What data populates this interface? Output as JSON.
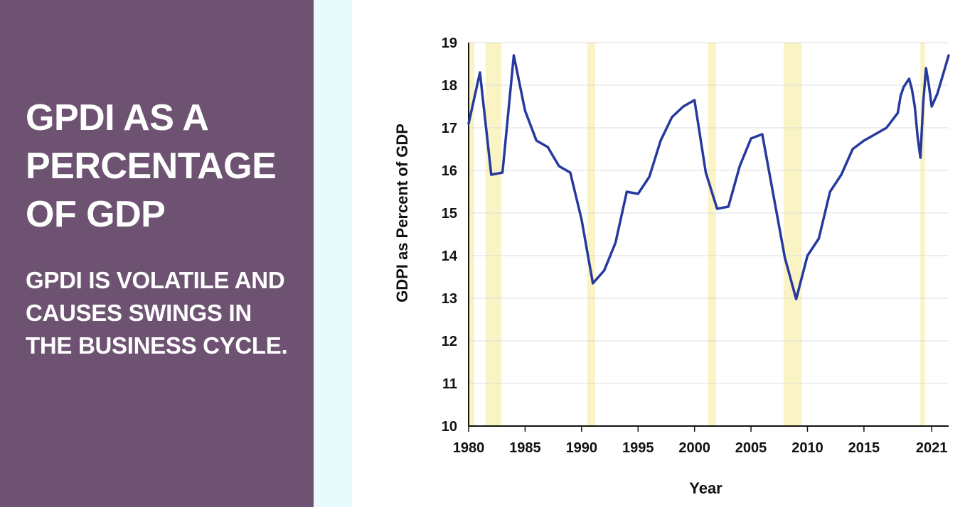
{
  "slide": {
    "title": "GPDI AS A PERCENTAGE OF GDP",
    "subtitle": "GPDI IS VOLATILE AND CAUSES SWINGS IN THE BUSINESS CYCLE."
  },
  "colors": {
    "panel": "#6e5272",
    "accent_strip": "#e8fafb",
    "line": "#26399f",
    "recession": "#faf3c4",
    "grid": "#dddddd"
  },
  "chart_data": {
    "type": "line",
    "xlabel": "Year",
    "ylabel": "GDPI as Percent of GDP",
    "xlim": [
      1980,
      2022.5
    ],
    "ylim": [
      10,
      19
    ],
    "x_ticks": [
      "1980",
      "1985",
      "1990",
      "1995",
      "2000",
      "2005",
      "2010",
      "2015",
      "2021"
    ],
    "x_tick_values": [
      1980,
      1985,
      1990,
      1995,
      2000,
      2005,
      2010,
      2015,
      2021
    ],
    "y_ticks": [
      10,
      11,
      12,
      13,
      14,
      15,
      16,
      17,
      18,
      19
    ],
    "grid": "horizontal",
    "recession_bands": [
      [
        1980.0,
        1980.5
      ],
      [
        1981.5,
        1982.9
      ],
      [
        1990.5,
        1991.2
      ],
      [
        2001.2,
        2001.9
      ],
      [
        2007.9,
        2009.5
      ],
      [
        2020.0,
        2020.4
      ]
    ],
    "series": [
      {
        "x": [
          1980,
          1981,
          1982,
          1983,
          1984,
          1985,
          1986,
          1987,
          1988,
          1989,
          1990,
          1991,
          1992,
          1993,
          1994,
          1995,
          1996,
          1997,
          1998,
          1999,
          2000,
          2001,
          2002,
          2003,
          2004,
          2005,
          2006,
          2007,
          2008,
          2009,
          2010,
          2011,
          2012,
          2013,
          2014,
          2015,
          2016,
          2017,
          2018,
          2018.25,
          2018.5,
          2018.75,
          2019,
          2019.25,
          2019.5,
          2019.75,
          2020,
          2020.25,
          2020.5,
          2020.75,
          2021,
          2021.5,
          2022,
          2022.5
        ],
        "values": [
          17.1,
          18.3,
          15.9,
          15.95,
          18.7,
          17.4,
          16.7,
          16.55,
          16.1,
          15.95,
          14.85,
          13.35,
          13.65,
          14.3,
          15.5,
          15.45,
          15.85,
          16.7,
          17.25,
          17.5,
          17.65,
          15.95,
          15.1,
          15.15,
          16.1,
          16.75,
          16.85,
          15.4,
          13.95,
          12.98,
          14.0,
          14.4,
          15.5,
          15.9,
          16.5,
          16.7,
          16.85,
          17.0,
          17.35,
          17.75,
          17.95,
          18.05,
          18.15,
          17.9,
          17.5,
          16.8,
          16.3,
          17.6,
          18.4,
          18.0,
          17.5,
          17.8,
          18.25,
          18.7
        ]
      }
    ]
  }
}
